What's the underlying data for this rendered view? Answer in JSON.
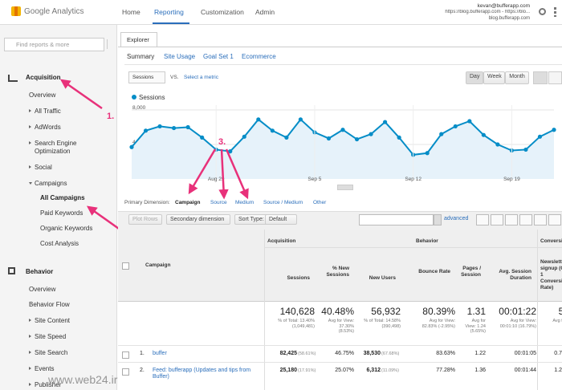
{
  "header": {
    "logo": "Google Analytics",
    "nav": [
      "Home",
      "Reporting",
      "Customization",
      "Admin"
    ],
    "account": {
      "email": "kevan@bufferapp.com",
      "property": "https://blog.bufferapp.com - https://blo...",
      "view": "blog.bufferapp.com"
    }
  },
  "sidebar": {
    "search": "Find reports & more",
    "items": [
      "Acquisition",
      "Overview",
      "All Traffic",
      "AdWords",
      "Search Engine Optimization",
      "Social",
      "Campaigns",
      "All Campaigns",
      "Paid Keywords",
      "Organic Keywords",
      "Cost Analysis",
      "Behavior",
      "Overview",
      "Behavior Flow",
      "Site Content",
      "Site Speed",
      "Site Search",
      "Events",
      "Publisher"
    ]
  },
  "explorer": {
    "tab": "Explorer",
    "subtabs": [
      "Summary",
      "Site Usage",
      "Goal Set 1",
      "Ecommerce"
    ],
    "metric": "Sessions",
    "vs": "VS.",
    "select_metric": "Select a metric",
    "periods": [
      "Day",
      "Week",
      "Month"
    ]
  },
  "chart_data": {
    "type": "line",
    "categories": [
      null,
      null,
      null,
      null,
      null,
      null,
      "Aug 29",
      null,
      null,
      null,
      null,
      null,
      null,
      "Sep 5",
      null,
      null,
      null,
      null,
      null,
      null,
      "Sep 12",
      null,
      null,
      null,
      null,
      null,
      null,
      "Sep 19",
      null,
      null,
      null
    ],
    "series": [
      {
        "name": "Sessions",
        "color": "#058dc7",
        "values": [
          3700,
          5600,
          6100,
          5900,
          6000,
          4800,
          3400,
          3200,
          4900,
          6900,
          5600,
          4800,
          6900,
          5400,
          4700,
          5700,
          4600,
          5200,
          6600,
          4800,
          2800,
          3000,
          5200,
          6100,
          6700,
          5100,
          4000,
          3300,
          3400,
          4900,
          5700
        ]
      }
    ],
    "ylim": [
      0,
      8000
    ],
    "yticks": [
      {
        "value": 8000,
        "label": "8,000"
      },
      {
        "value": 4000,
        "label": "4,000"
      }
    ]
  },
  "dimensions": {
    "label": "Primary Dimension:",
    "options": [
      "Campaign",
      "Source",
      "Medium",
      "Source / Medium",
      "Other"
    ]
  },
  "toolbar": {
    "plot_rows": "Plot Rows",
    "secondary": "Secondary dimension",
    "sort_type": "Sort Type:",
    "sort_value": "Default",
    "advanced": "advanced"
  },
  "table": {
    "groups": [
      "Acquisition",
      "Behavior",
      "Conversions"
    ],
    "campaign_header": "Campaign",
    "columns": [
      "Sessions",
      "% New Sessions",
      "New Users",
      "Bounce Rate",
      "Pages / Session",
      "Avg. Session Duration",
      "Newsletter signup (Goal 1 Conversion Rate)"
    ],
    "totals": [
      {
        "value": "140,628",
        "sub": "% of Total: 13.40% (1,049,481)"
      },
      {
        "value": "40.48%",
        "sub": "Avg for View: 37.30% (8.53%)"
      },
      {
        "value": "56,932",
        "sub": "% of Total: 14.58% (390,498)"
      },
      {
        "value": "80.39%",
        "sub": "Avg for View: 82.83% (-2.95%)"
      },
      {
        "value": "1.31",
        "sub": "Avg for View: 1.24 (5.65%)"
      },
      {
        "value": "00:01:22",
        "sub": "Avg for View: 00:01:10 (16.79%)"
      },
      {
        "value": "5.93",
        "sub": "Avg for View"
      }
    ],
    "rows": [
      {
        "index": "1.",
        "campaign": "buffer",
        "cells": [
          "82,425",
          "(58.61%)",
          "46.75%",
          "38,530",
          "(67.68%)",
          "83.63%",
          "1.22",
          "00:01:05",
          "0.7"
        ]
      },
      {
        "index": "2.",
        "campaign": "Feed: bufferapp (Updates and tips from Buffer)",
        "cells": [
          "25,180",
          "(17.91%)",
          "25.07%",
          "6,312",
          "(11.09%)",
          "77.28%",
          "1.36",
          "00:01:44",
          "1.2"
        ]
      }
    ]
  },
  "annotations": [
    "1.",
    "2.",
    "3."
  ],
  "watermark": "www.web24.ir"
}
